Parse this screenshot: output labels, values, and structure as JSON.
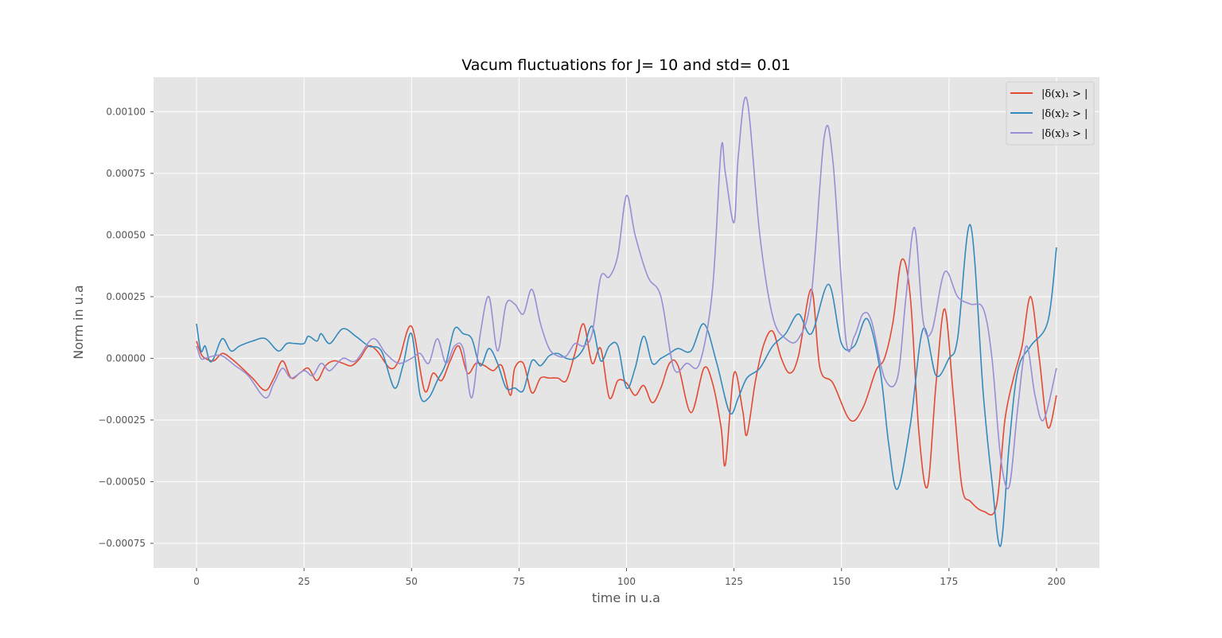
{
  "chart_data": {
    "type": "line",
    "title": "Vacum fluctuations for J= 10 and std= 0.01",
    "xlabel": "time in u.a",
    "ylabel": "Norm in u.a",
    "xlim": [
      -10,
      210
    ],
    "ylim": [
      -0.00085,
      0.00114
    ],
    "xticks": [
      0,
      25,
      50,
      75,
      100,
      125,
      150,
      175,
      200
    ],
    "xtick_labels": [
      "0",
      "25",
      "50",
      "75",
      "100",
      "125",
      "150",
      "175",
      "200"
    ],
    "yticks": [
      -0.00075,
      -0.0005,
      -0.00025,
      0.0,
      0.00025,
      0.0005,
      0.00075,
      0.001
    ],
    "ytick_labels": [
      "−0.00075",
      "−0.00050",
      "−0.00025",
      "0.00000",
      "0.00025",
      "0.00050",
      "0.00075",
      "0.00100"
    ],
    "grid": true,
    "style": "ggplot",
    "legend_position": "top-right",
    "series": [
      {
        "name": "|δ(x)₁ > |",
        "color": "#E24A33",
        "x": [
          0,
          1,
          2,
          4,
          6,
          8,
          10,
          13,
          16,
          18,
          20,
          22,
          24,
          26,
          28,
          30,
          32,
          34,
          36,
          38,
          40,
          42,
          45,
          47,
          50,
          53,
          55,
          57,
          59,
          61,
          63,
          65,
          67,
          69,
          71,
          73,
          74,
          76,
          78,
          80,
          82,
          84,
          86,
          88,
          90,
          92,
          94,
          96,
          98,
          100,
          102,
          104,
          106,
          108,
          110,
          112,
          115,
          118,
          120,
          122,
          123,
          125,
          127,
          128,
          130,
          132,
          134,
          136,
          138,
          140,
          143,
          145,
          148,
          152,
          155,
          158,
          160,
          162,
          164,
          166,
          168,
          170,
          172,
          174,
          176,
          178,
          180,
          183,
          186,
          188,
          190,
          192,
          194,
          196,
          198,
          200
        ],
        "y": [
          7e-05,
          2e-05,
          0.0,
          -1e-05,
          2e-05,
          0.0,
          -3e-05,
          -8e-05,
          -0.00013,
          -8e-05,
          -1e-05,
          -8e-05,
          -6e-05,
          -4e-05,
          -9e-05,
          -3e-05,
          -1e-05,
          -2e-05,
          -3e-05,
          0.0,
          5e-05,
          3e-05,
          -4e-05,
          -1e-05,
          0.00013,
          -0.00013,
          -6e-05,
          -9e-05,
          -1e-05,
          5e-05,
          -6e-05,
          -2e-05,
          -3e-05,
          -5e-05,
          -3e-05,
          -0.00015,
          -4e-05,
          -2e-05,
          -0.00014,
          -8e-05,
          -8e-05,
          -8e-05,
          -9e-05,
          2e-05,
          0.00014,
          -2e-05,
          4e-05,
          -0.00016,
          -9e-05,
          -0.0001,
          -0.00015,
          -0.00011,
          -0.00018,
          -0.00012,
          -2e-05,
          -3e-05,
          -0.00022,
          -4e-05,
          -0.0001,
          -0.00028,
          -0.00043,
          -6e-05,
          -0.00021,
          -0.00031,
          -9e-05,
          6e-05,
          0.00011,
          0.0,
          -6e-05,
          1e-05,
          0.00028,
          -4e-05,
          -0.0001,
          -0.00025,
          -0.0002,
          -5e-05,
          0.0,
          0.00015,
          0.0004,
          0.00025,
          -0.0003,
          -0.00052,
          -0.0001,
          0.0002,
          -0.00015,
          -0.00052,
          -0.00058,
          -0.00062,
          -0.0006,
          -0.00025,
          -8e-05,
          5e-05,
          0.00025,
          0.0,
          -0.00028,
          -0.00015
        ]
      },
      {
        "name": "|δ(x)₂ > |",
        "color": "#348ABD",
        "x": [
          0,
          1,
          2,
          3,
          4,
          6,
          8,
          10,
          13,
          16,
          19,
          21,
          23,
          25,
          26,
          28,
          29,
          31,
          34,
          37,
          40,
          43,
          46,
          48,
          50,
          52,
          54,
          56,
          58,
          60,
          62,
          64,
          66,
          68,
          70,
          72,
          74,
          76,
          78,
          80,
          82,
          84,
          86,
          88,
          90,
          92,
          94,
          96,
          98,
          100,
          102,
          104,
          106,
          108,
          110,
          112,
          115,
          118,
          121,
          124,
          126,
          128,
          131,
          134,
          137,
          140,
          143,
          147,
          150,
          153,
          156,
          159,
          161,
          163,
          166,
          169,
          172,
          175,
          177,
          180,
          183,
          185,
          187,
          189,
          191,
          194,
          198,
          200
        ],
        "y": [
          0.00014,
          3e-05,
          5e-05,
          -1e-05,
          0.0,
          8e-05,
          3e-05,
          5e-05,
          7e-05,
          8e-05,
          3e-05,
          6e-05,
          6e-05,
          6e-05,
          9e-05,
          7e-05,
          0.0001,
          6e-05,
          0.00012,
          9e-05,
          5e-05,
          3e-05,
          -0.00012,
          -3e-05,
          0.0001,
          -0.00015,
          -0.00016,
          -9e-05,
          -2e-05,
          0.00012,
          0.0001,
          8e-05,
          -3e-05,
          4e-05,
          -2e-05,
          -0.00012,
          -0.00012,
          -0.00013,
          -1e-05,
          -3e-05,
          1e-05,
          2e-05,
          0.0,
          0.0,
          4e-05,
          0.00013,
          -1e-05,
          5e-05,
          5e-05,
          -0.00012,
          -4e-05,
          9e-05,
          -2e-05,
          0.0,
          2e-05,
          4e-05,
          3e-05,
          0.00014,
          -2e-05,
          -0.00022,
          -0.00016,
          -8e-05,
          -4e-05,
          5e-05,
          0.0001,
          0.00018,
          0.0001,
          0.0003,
          6e-05,
          5e-05,
          0.00016,
          -5e-05,
          -0.00035,
          -0.00053,
          -0.00027,
          0.00012,
          -7e-05,
          0.0,
          8e-05,
          0.00054,
          -0.00015,
          -0.0005,
          -0.00076,
          -0.00035,
          -5e-05,
          5e-05,
          0.00015,
          0.00045
        ]
      },
      {
        "name": "|δ(x)₃ > |",
        "color": "#988ED5",
        "x": [
          0,
          1,
          2,
          4,
          6,
          9,
          12,
          16,
          18,
          20,
          22,
          25,
          27,
          29,
          31,
          34,
          37,
          41,
          44,
          47,
          50,
          52,
          54,
          56,
          58,
          60,
          62,
          64,
          66,
          68,
          70,
          72,
          74,
          76,
          78,
          80,
          82,
          84,
          86,
          88,
          90,
          92,
          94,
          96,
          98,
          100,
          102,
          105,
          108,
          111,
          114,
          117,
          120,
          122,
          123,
          125,
          126,
          128,
          131,
          134,
          137,
          140,
          143,
          146,
          148,
          151,
          153,
          155,
          157,
          160,
          163,
          165,
          167,
          169,
          171,
          174,
          177,
          180,
          183,
          185,
          187,
          189,
          191,
          193,
          195,
          197,
          200
        ],
        "y": [
          5e-05,
          0.0,
          0.0,
          1e-05,
          1e-05,
          -3e-05,
          -7e-05,
          -0.00016,
          -0.0001,
          -4e-05,
          -8e-05,
          -5e-05,
          -7e-05,
          -2e-05,
          -5e-05,
          0.0,
          -1e-05,
          8e-05,
          2e-05,
          -2e-05,
          0.0,
          2e-05,
          -2e-05,
          8e-05,
          -2e-05,
          5e-05,
          4e-05,
          -0.00016,
          0.0001,
          0.00025,
          3e-05,
          0.00022,
          0.00022,
          0.00018,
          0.00028,
          0.00014,
          4e-05,
          1e-05,
          1e-05,
          6e-05,
          5e-05,
          0.0001,
          0.00033,
          0.00033,
          0.00042,
          0.00066,
          0.0005,
          0.00033,
          0.00025,
          -4e-05,
          -2e-05,
          -2e-05,
          0.00028,
          0.00085,
          0.00075,
          0.00055,
          0.00082,
          0.00105,
          0.0005,
          0.00017,
          8e-05,
          8e-05,
          0.00026,
          0.0009,
          0.0008,
          8e-05,
          9e-05,
          0.00018,
          0.00015,
          -8e-05,
          -8e-05,
          0.00025,
          0.00053,
          0.00015,
          0.00011,
          0.00035,
          0.00025,
          0.00022,
          0.0002,
          0.0,
          -0.0004,
          -0.00052,
          -0.0002,
          5e-05,
          -0.00015,
          -0.00025,
          -4e-05
        ]
      }
    ]
  }
}
